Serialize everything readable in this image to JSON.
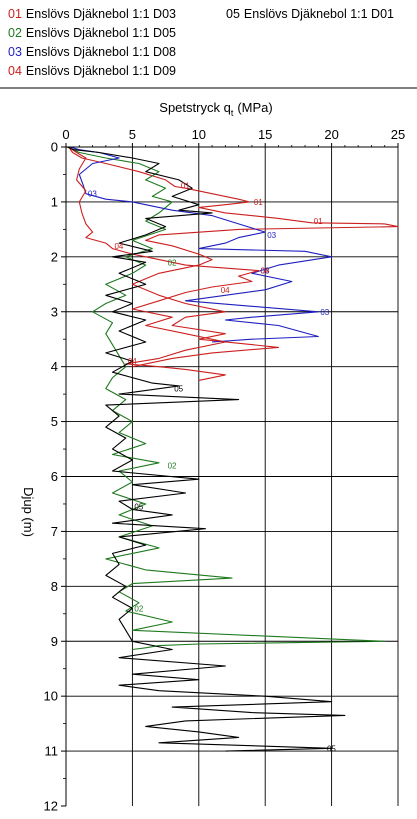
{
  "legend": [
    {
      "code": "01",
      "name": "Enslövs Djäknebol 1:1 D03",
      "color": "#cc1f1f"
    },
    {
      "code": "02",
      "name": "Enslövs Djäknebol 1:1 D05",
      "color": "#1f7a1f"
    },
    {
      "code": "03",
      "name": "Enslövs Djäknebol 1:1 D08",
      "color": "#1f1fbf"
    },
    {
      "code": "04",
      "name": "Enslövs Djäknebol 1:1 D09",
      "color": "#cc1f1f"
    },
    {
      "code": "05",
      "name": "Enslövs Djäknebol 1:1 D01",
      "color": "#000000"
    }
  ],
  "chart_data": {
    "type": "line",
    "title": "",
    "xlabel_main": "Spetstryck q",
    "xlabel_sub": "t",
    "xlabel_unit": "(MPa)",
    "ylabel": "Djup  (m)",
    "xlim": [
      0,
      25
    ],
    "ylim": [
      12,
      0
    ],
    "x_ticks": [
      0,
      5,
      10,
      15,
      20,
      25
    ],
    "y_ticks": [
      0,
      1,
      2,
      3,
      4,
      5,
      6,
      7,
      8,
      9,
      10,
      11,
      12
    ],
    "grid": true,
    "legend_position": "top",
    "series": [
      {
        "code": "01",
        "name": "Enslövs Djäknebol 1:1 D03",
        "color": "#cc1f1f",
        "label_at": [
          [
            8.5,
            0.7
          ],
          [
            14,
            1.0
          ],
          [
            18.5,
            1.35
          ]
        ],
        "points": [
          [
            0.2,
            0
          ],
          [
            0.5,
            0.1
          ],
          [
            1.2,
            0.2
          ],
          [
            3,
            0.3
          ],
          [
            5.5,
            0.45
          ],
          [
            7.5,
            0.6
          ],
          [
            8.2,
            0.72
          ],
          [
            9,
            0.75
          ],
          [
            11,
            0.85
          ],
          [
            13,
            0.95
          ],
          [
            13.8,
            1.0
          ],
          [
            12,
            1.05
          ],
          [
            10,
            1.1
          ],
          [
            12,
            1.2
          ],
          [
            16,
            1.3
          ],
          [
            18.5,
            1.38
          ],
          [
            24,
            1.4
          ],
          [
            25,
            1.45
          ],
          [
            13,
            1.5
          ],
          [
            7,
            1.6
          ],
          [
            6,
            1.7
          ],
          [
            8,
            1.8
          ],
          [
            10,
            1.95
          ],
          [
            11,
            2.05
          ],
          [
            10,
            2.15
          ],
          [
            7,
            2.3
          ],
          [
            5,
            2.5
          ],
          [
            7,
            2.7
          ],
          [
            9,
            2.85
          ],
          [
            12,
            3.0
          ],
          [
            9,
            3.1
          ],
          [
            8,
            3.25
          ],
          [
            12,
            3.4
          ],
          [
            10,
            3.5
          ],
          [
            16,
            3.65
          ],
          [
            11,
            3.75
          ],
          [
            8,
            3.85
          ],
          [
            6,
            3.95
          ],
          [
            5,
            4.0
          ]
        ]
      },
      {
        "code": "02",
        "name": "Enslövs Djäknebol 1:1 D05",
        "color": "#1f7a1f",
        "label_at": [
          [
            7.5,
            2.1
          ],
          [
            7.5,
            5.8
          ],
          [
            5,
            8.4
          ]
        ],
        "points": [
          [
            0.1,
            0
          ],
          [
            1,
            0.1
          ],
          [
            3,
            0.2
          ],
          [
            5.5,
            0.3
          ],
          [
            7,
            0.45
          ],
          [
            6,
            0.6
          ],
          [
            7.5,
            0.75
          ],
          [
            6.5,
            0.9
          ],
          [
            8,
            1.0
          ],
          [
            7,
            1.2
          ],
          [
            6,
            1.35
          ],
          [
            7.5,
            1.5
          ],
          [
            5,
            1.7
          ],
          [
            6.5,
            1.85
          ],
          [
            4.5,
            2.0
          ],
          [
            6,
            2.15
          ],
          [
            5,
            2.3
          ],
          [
            3,
            2.5
          ],
          [
            4.5,
            2.7
          ],
          [
            3,
            2.85
          ],
          [
            2,
            3.0
          ],
          [
            3.5,
            3.2
          ],
          [
            3,
            3.4
          ],
          [
            3.5,
            3.6
          ],
          [
            4,
            3.8
          ],
          [
            4.5,
            4.0
          ],
          [
            3.5,
            4.2
          ],
          [
            3,
            4.4
          ],
          [
            4.5,
            4.6
          ],
          [
            3.5,
            4.8
          ],
          [
            5,
            5.0
          ],
          [
            4,
            5.2
          ],
          [
            6,
            5.4
          ],
          [
            3.5,
            5.6
          ],
          [
            7,
            5.75
          ],
          [
            4,
            5.9
          ],
          [
            5,
            6.1
          ],
          [
            3.5,
            6.3
          ],
          [
            6,
            6.5
          ],
          [
            4,
            6.7
          ],
          [
            6.5,
            6.9
          ],
          [
            4,
            7.1
          ],
          [
            7,
            7.3
          ],
          [
            3,
            7.5
          ],
          [
            6,
            7.7
          ],
          [
            12.5,
            7.85
          ],
          [
            5,
            7.95
          ],
          [
            4,
            8.1
          ],
          [
            5.5,
            8.3
          ],
          [
            4.5,
            8.45
          ],
          [
            8,
            8.65
          ],
          [
            5,
            8.8
          ],
          [
            24,
            9.0
          ],
          [
            10,
            9.05
          ],
          [
            7,
            9.08
          ],
          [
            6,
            9.12
          ],
          [
            5,
            9.15
          ]
        ]
      },
      {
        "code": "03",
        "name": "Enslövs Djäknebol 1:1 D08",
        "color": "#1f1fbf",
        "label_at": [
          [
            1.5,
            0.85
          ],
          [
            15,
            1.6
          ],
          [
            14.5,
            2.25
          ],
          [
            19,
            3.0
          ]
        ],
        "points": [
          [
            0.3,
            0
          ],
          [
            1,
            0.05
          ],
          [
            2.5,
            0.1
          ],
          [
            4,
            0.2
          ],
          [
            2,
            0.3
          ],
          [
            1,
            0.5
          ],
          [
            1.3,
            0.7
          ],
          [
            1.5,
            0.85
          ],
          [
            3,
            0.95
          ],
          [
            5,
            1.0
          ],
          [
            6,
            1.05
          ],
          [
            8,
            1.15
          ],
          [
            11,
            1.25
          ],
          [
            13,
            1.4
          ],
          [
            15,
            1.55
          ],
          [
            13,
            1.65
          ],
          [
            12,
            1.75
          ],
          [
            10,
            1.85
          ],
          [
            18,
            1.9
          ],
          [
            20,
            2.0
          ],
          [
            16,
            2.15
          ],
          [
            14,
            2.3
          ],
          [
            17,
            2.45
          ],
          [
            15,
            2.6
          ],
          [
            9,
            2.8
          ],
          [
            14,
            2.9
          ],
          [
            19,
            3.0
          ],
          [
            14,
            3.1
          ],
          [
            12,
            3.15
          ],
          [
            16,
            3.25
          ],
          [
            19,
            3.45
          ],
          [
            14,
            3.5
          ],
          [
            11,
            3.55
          ]
        ]
      },
      {
        "code": "04",
        "name": "Enslövs Djäknebol 1:1 D09",
        "color": "#cc1f1f",
        "label_at": [
          [
            3.5,
            1.8
          ],
          [
            14.5,
            2.25
          ],
          [
            11.5,
            2.6
          ],
          [
            4.5,
            3.9
          ]
        ],
        "points": [
          [
            0.2,
            0
          ],
          [
            0.8,
            0.1
          ],
          [
            1.5,
            0.2
          ],
          [
            1.0,
            0.4
          ],
          [
            0.8,
            0.6
          ],
          [
            1.5,
            0.8
          ],
          [
            1.0,
            1.0
          ],
          [
            1.2,
            1.2
          ],
          [
            1.5,
            1.4
          ],
          [
            2,
            1.55
          ],
          [
            1.5,
            1.65
          ],
          [
            3,
            1.75
          ],
          [
            3.5,
            1.85
          ],
          [
            5,
            1.95
          ],
          [
            7,
            2.05
          ],
          [
            9,
            2.15
          ],
          [
            14.5,
            2.25
          ],
          [
            13,
            2.35
          ],
          [
            14,
            2.45
          ],
          [
            11,
            2.55
          ],
          [
            9,
            2.65
          ],
          [
            7,
            2.8
          ],
          [
            5,
            2.95
          ],
          [
            8,
            3.1
          ],
          [
            6,
            3.25
          ],
          [
            9,
            3.4
          ],
          [
            12,
            3.55
          ],
          [
            9,
            3.7
          ],
          [
            7,
            3.85
          ],
          [
            4.5,
            3.95
          ],
          [
            7,
            4.0
          ],
          [
            9,
            4.05
          ],
          [
            12,
            4.15
          ],
          [
            10,
            4.25
          ]
        ]
      },
      {
        "code": "05",
        "name": "Enslövs Djäknebol 1:1 D01",
        "color": "#000000",
        "label_at": [
          [
            8,
            4.4
          ],
          [
            5,
            6.55
          ],
          [
            19.5,
            10.95
          ]
        ],
        "points": [
          [
            0.1,
            0
          ],
          [
            0.6,
            0.05
          ],
          [
            2.5,
            0.1
          ],
          [
            5,
            0.2
          ],
          [
            7,
            0.3
          ],
          [
            6,
            0.45
          ],
          [
            8.5,
            0.6
          ],
          [
            9.5,
            0.75
          ],
          [
            8,
            0.9
          ],
          [
            10,
            1.05
          ],
          [
            8.5,
            1.15
          ],
          [
            11,
            1.2
          ],
          [
            6,
            1.3
          ],
          [
            7.5,
            1.45
          ],
          [
            6,
            1.6
          ],
          [
            4,
            1.75
          ],
          [
            6.5,
            1.9
          ],
          [
            3.5,
            2.0
          ],
          [
            6,
            2.1
          ],
          [
            4,
            2.3
          ],
          [
            6,
            2.5
          ],
          [
            3,
            2.7
          ],
          [
            5,
            2.85
          ],
          [
            3.5,
            3.0
          ],
          [
            6,
            3.15
          ],
          [
            4,
            3.35
          ],
          [
            6,
            3.55
          ],
          [
            3,
            3.75
          ],
          [
            5,
            3.9
          ],
          [
            3.5,
            4.1
          ],
          [
            6.5,
            4.3
          ],
          [
            8.5,
            4.35
          ],
          [
            4,
            4.5
          ],
          [
            13,
            4.6
          ],
          [
            3,
            4.7
          ],
          [
            4,
            4.9
          ],
          [
            3,
            5.1
          ],
          [
            4.5,
            5.3
          ],
          [
            3.5,
            5.5
          ],
          [
            5,
            5.7
          ],
          [
            3.5,
            5.9
          ],
          [
            10,
            6.05
          ],
          [
            5,
            6.15
          ],
          [
            9,
            6.3
          ],
          [
            4,
            6.45
          ],
          [
            5,
            6.6
          ],
          [
            8,
            6.7
          ],
          [
            3.5,
            6.85
          ],
          [
            10.5,
            6.95
          ],
          [
            4,
            7.1
          ],
          [
            6,
            7.25
          ],
          [
            3.5,
            7.4
          ],
          [
            4,
            7.6
          ],
          [
            3,
            7.8
          ],
          [
            4.5,
            8.0
          ],
          [
            3.5,
            8.2
          ],
          [
            5,
            8.4
          ],
          [
            4,
            8.6
          ],
          [
            4.5,
            8.8
          ],
          [
            5,
            9.0
          ],
          [
            8,
            9.15
          ],
          [
            4,
            9.3
          ],
          [
            12,
            9.45
          ],
          [
            5,
            9.6
          ],
          [
            10,
            9.7
          ],
          [
            4,
            9.8
          ],
          [
            7,
            9.9
          ],
          [
            15,
            10.0
          ],
          [
            20,
            10.1
          ],
          [
            8,
            10.2
          ],
          [
            14,
            10.3
          ],
          [
            21,
            10.35
          ],
          [
            9,
            10.45
          ],
          [
            6,
            10.55
          ],
          [
            10,
            10.65
          ],
          [
            13,
            10.75
          ],
          [
            7,
            10.85
          ],
          [
            20,
            10.95
          ],
          [
            12,
            11.0
          ]
        ]
      }
    ]
  }
}
